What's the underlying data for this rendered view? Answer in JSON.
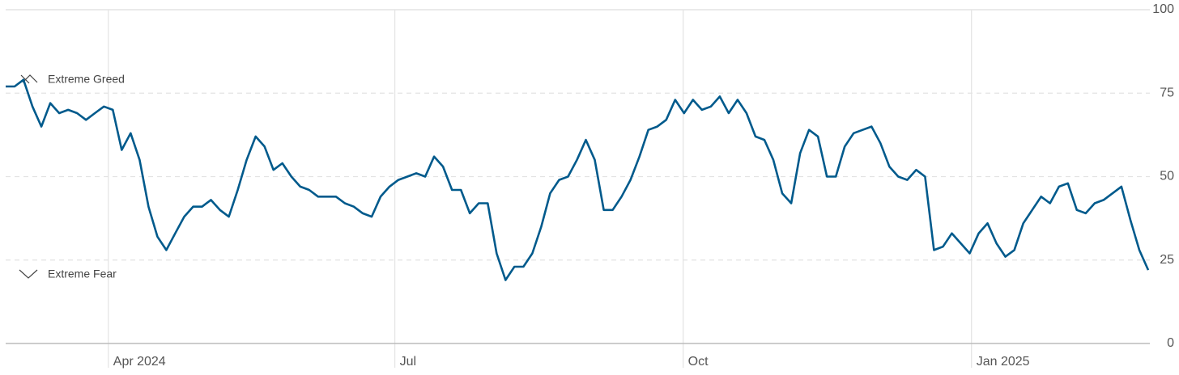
{
  "chart_data": {
    "type": "line",
    "annotations": [
      "Extreme Greed",
      "Extreme Fear"
    ],
    "series": [
      {
        "color": "#005a8c",
        "values": [
          77,
          77,
          79,
          71,
          65,
          72,
          69,
          70,
          69,
          67,
          69,
          71,
          70,
          58,
          63,
          55,
          41,
          32,
          28,
          33,
          38,
          41,
          41,
          43,
          40,
          38,
          46,
          55,
          62,
          59,
          52,
          54,
          50,
          47,
          46,
          44,
          44,
          44,
          42,
          41,
          39,
          38,
          44,
          47,
          49,
          50,
          51,
          50,
          56,
          53,
          46,
          46,
          39,
          42,
          42,
          27,
          19,
          23,
          23,
          27,
          35,
          45,
          49,
          50,
          55,
          61,
          55,
          40,
          40,
          44,
          49,
          56,
          64,
          65,
          67,
          73,
          69,
          73,
          70,
          71,
          74,
          69,
          73,
          69,
          62,
          61,
          55,
          45,
          42,
          57,
          64,
          62,
          50,
          50,
          59,
          63,
          64,
          65,
          60,
          53,
          50,
          49,
          52,
          50,
          28,
          29,
          33,
          30,
          27,
          33,
          36,
          30,
          26,
          28,
          36,
          40,
          44,
          42,
          47,
          48,
          40,
          39,
          42,
          43,
          45,
          47,
          37,
          28,
          22
        ]
      }
    ],
    "xlim": [
      0,
      128
    ],
    "xticks": [
      {
        "value": 11.5,
        "label": "Apr 2024"
      },
      {
        "value": 43.6,
        "label": "Jul"
      },
      {
        "value": 75.9,
        "label": "Oct"
      },
      {
        "value": 108.2,
        "label": "Jan 2025"
      }
    ],
    "ylim": [
      0,
      100
    ],
    "yticks": [
      0,
      25,
      50,
      75,
      100
    ],
    "grid": true
  }
}
